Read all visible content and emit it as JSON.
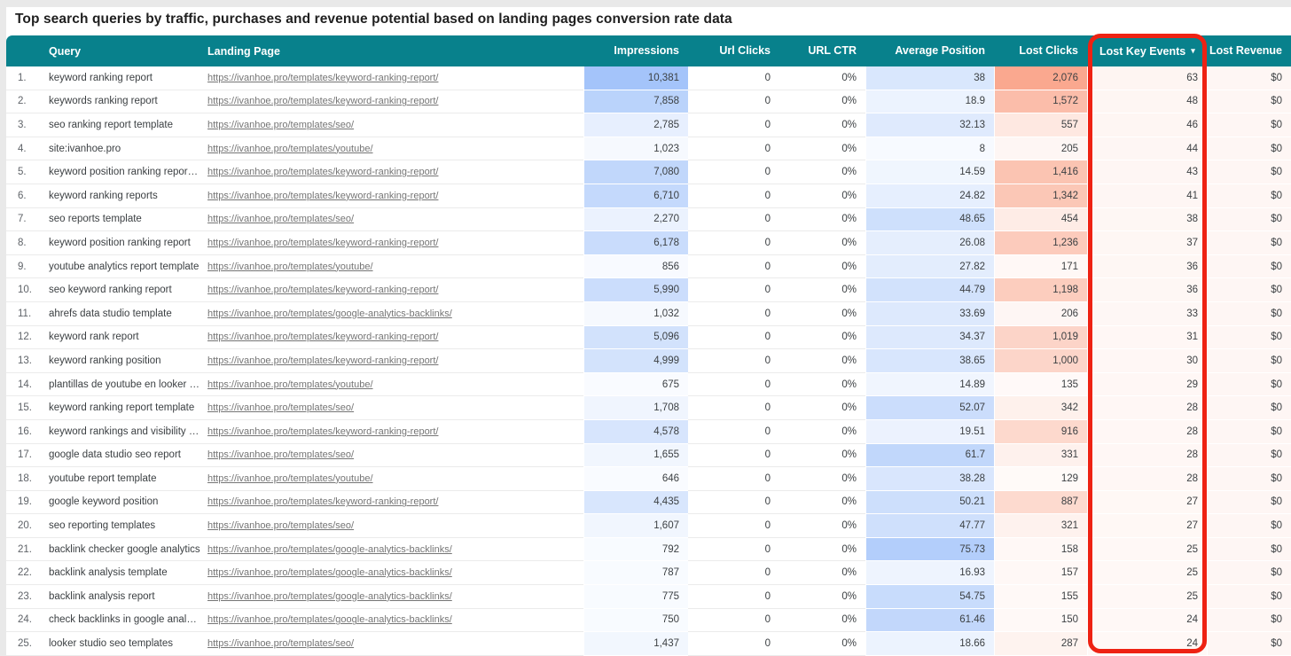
{
  "title": "Top search queries by traffic, purchases and revenue potential based on landing pages conversion rate data",
  "colors": {
    "header_bg": "#08818c",
    "heat_blue": "#4285f4",
    "heat_orange": "#f4511e",
    "annotation_red": "#ee2213",
    "link_gray": "#757575",
    "page_margin_gray": "#e9e9e9"
  },
  "table_ui": {
    "sort_indicator": "▾",
    "sorted_column": "Lost Key Events",
    "sort_direction": "desc"
  },
  "chart_data": {
    "type": "table",
    "title": "Top search queries by traffic, purchases and revenue potential based on landing pages conversion rate data",
    "columns": [
      "Query",
      "Landing Page",
      "Impressions",
      "Url Clicks",
      "URL CTR",
      "Average Position",
      "Lost Clicks",
      "Lost Key Events",
      "Lost Revenue"
    ],
    "heatmap_maxima": {
      "impressions": 10381,
      "average_position": 75.73,
      "lost_clicks": 2076,
      "lost_key_events": 63
    },
    "rows": [
      [
        "1.",
        "keyword ranking report",
        "https://ivanhoe.pro/templates/keyword-ranking-report/",
        "10,381",
        "0",
        "0%",
        "38",
        "2,076",
        "63",
        "$0"
      ],
      [
        "2.",
        "keywords ranking report",
        "https://ivanhoe.pro/templates/keyword-ranking-report/",
        "7,858",
        "0",
        "0%",
        "18.9",
        "1,572",
        "48",
        "$0"
      ],
      [
        "3.",
        "seo ranking report template",
        "https://ivanhoe.pro/templates/seo/",
        "2,785",
        "0",
        "0%",
        "32.13",
        "557",
        "46",
        "$0"
      ],
      [
        "4.",
        "site:ivanhoe.pro",
        "https://ivanhoe.pro/templates/youtube/",
        "1,023",
        "0",
        "0%",
        "8",
        "205",
        "44",
        "$0"
      ],
      [
        "5.",
        "keyword position ranking repor…",
        "https://ivanhoe.pro/templates/keyword-ranking-report/",
        "7,080",
        "0",
        "0%",
        "14.59",
        "1,416",
        "43",
        "$0"
      ],
      [
        "6.",
        "keyword ranking reports",
        "https://ivanhoe.pro/templates/keyword-ranking-report/",
        "6,710",
        "0",
        "0%",
        "24.82",
        "1,342",
        "41",
        "$0"
      ],
      [
        "7.",
        "seo reports template",
        "https://ivanhoe.pro/templates/seo/",
        "2,270",
        "0",
        "0%",
        "48.65",
        "454",
        "38",
        "$0"
      ],
      [
        "8.",
        "keyword position ranking report",
        "https://ivanhoe.pro/templates/keyword-ranking-report/",
        "6,178",
        "0",
        "0%",
        "26.08",
        "1,236",
        "37",
        "$0"
      ],
      [
        "9.",
        "youtube analytics report template",
        "https://ivanhoe.pro/templates/youtube/",
        "856",
        "0",
        "0%",
        "27.82",
        "171",
        "36",
        "$0"
      ],
      [
        "10.",
        "seo keyword ranking report",
        "https://ivanhoe.pro/templates/keyword-ranking-report/",
        "5,990",
        "0",
        "0%",
        "44.79",
        "1,198",
        "36",
        "$0"
      ],
      [
        "11.",
        "ahrefs data studio template",
        "https://ivanhoe.pro/templates/google-analytics-backlinks/",
        "1,032",
        "0",
        "0%",
        "33.69",
        "206",
        "33",
        "$0"
      ],
      [
        "12.",
        "keyword rank report",
        "https://ivanhoe.pro/templates/keyword-ranking-report/",
        "5,096",
        "0",
        "0%",
        "34.37",
        "1,019",
        "31",
        "$0"
      ],
      [
        "13.",
        "keyword ranking position",
        "https://ivanhoe.pro/templates/keyword-ranking-report/",
        "4,999",
        "0",
        "0%",
        "38.65",
        "1,000",
        "30",
        "$0"
      ],
      [
        "14.",
        "plantillas de youtube en looker …",
        "https://ivanhoe.pro/templates/youtube/",
        "675",
        "0",
        "0%",
        "14.89",
        "135",
        "29",
        "$0"
      ],
      [
        "15.",
        "keyword ranking report template",
        "https://ivanhoe.pro/templates/seo/",
        "1,708",
        "0",
        "0%",
        "52.07",
        "342",
        "28",
        "$0"
      ],
      [
        "16.",
        "keyword rankings and visibility …",
        "https://ivanhoe.pro/templates/keyword-ranking-report/",
        "4,578",
        "0",
        "0%",
        "19.51",
        "916",
        "28",
        "$0"
      ],
      [
        "17.",
        "google data studio seo report",
        "https://ivanhoe.pro/templates/seo/",
        "1,655",
        "0",
        "0%",
        "61.7",
        "331",
        "28",
        "$0"
      ],
      [
        "18.",
        "youtube report template",
        "https://ivanhoe.pro/templates/youtube/",
        "646",
        "0",
        "0%",
        "38.28",
        "129",
        "28",
        "$0"
      ],
      [
        "19.",
        "google keyword position",
        "https://ivanhoe.pro/templates/keyword-ranking-report/",
        "4,435",
        "0",
        "0%",
        "50.21",
        "887",
        "27",
        "$0"
      ],
      [
        "20.",
        "seo reporting templates",
        "https://ivanhoe.pro/templates/seo/",
        "1,607",
        "0",
        "0%",
        "47.77",
        "321",
        "27",
        "$0"
      ],
      [
        "21.",
        "backlink checker google analytics",
        "https://ivanhoe.pro/templates/google-analytics-backlinks/",
        "792",
        "0",
        "0%",
        "75.73",
        "158",
        "25",
        "$0"
      ],
      [
        "22.",
        "backlink analysis template",
        "https://ivanhoe.pro/templates/google-analytics-backlinks/",
        "787",
        "0",
        "0%",
        "16.93",
        "157",
        "25",
        "$0"
      ],
      [
        "23.",
        "backlink analysis report",
        "https://ivanhoe.pro/templates/google-analytics-backlinks/",
        "775",
        "0",
        "0%",
        "54.75",
        "155",
        "25",
        "$0"
      ],
      [
        "24.",
        "check backlinks in google anal…",
        "https://ivanhoe.pro/templates/google-analytics-backlinks/",
        "750",
        "0",
        "0%",
        "61.46",
        "150",
        "24",
        "$0"
      ],
      [
        "25.",
        "looker studio seo templates",
        "https://ivanhoe.pro/templates/seo/",
        "1,437",
        "0",
        "0%",
        "18.66",
        "287",
        "24",
        "$0"
      ]
    ]
  }
}
